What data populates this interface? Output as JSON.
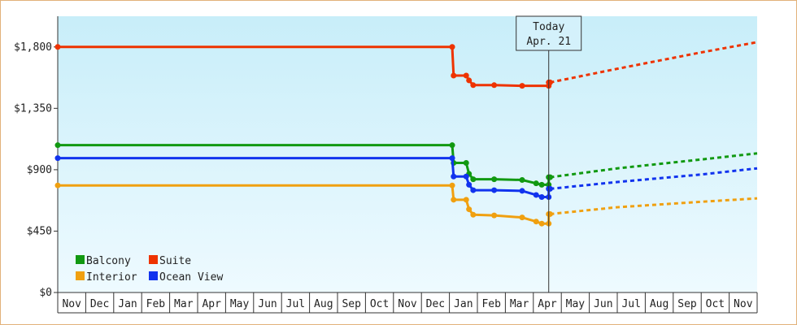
{
  "chart_data": {
    "type": "line",
    "ylim": [
      0,
      2025
    ],
    "yticks": [
      {
        "value": 0,
        "label": "$0"
      },
      {
        "value": 450,
        "label": "$450"
      },
      {
        "value": 900,
        "label": "$900"
      },
      {
        "value": 1350,
        "label": "$1,350"
      },
      {
        "value": 1800,
        "label": "$1,800"
      }
    ],
    "months": [
      "Nov",
      "Dec",
      "Jan",
      "Feb",
      "Mar",
      "Apr",
      "May",
      "Jun",
      "Jul",
      "Aug",
      "Sep",
      "Oct",
      "Nov",
      "Dec",
      "Jan",
      "Feb",
      "Mar",
      "Apr",
      "May",
      "Jun",
      "Jul",
      "Aug",
      "Sep",
      "Oct",
      "Nov"
    ],
    "today": {
      "label_line1": "Today",
      "label_line2": "Apr. 21",
      "x": 17.55
    },
    "legend": [
      "Balcony",
      "Suite",
      "Interior",
      "Ocean View"
    ],
    "colors": {
      "Balcony": "#119911",
      "Suite": "#ee3300",
      "Interior": "#f0a010",
      "Ocean View": "#1133ee",
      "background_top": "#c8eef9",
      "background_bottom": "#eefaff"
    },
    "series": [
      {
        "name": "Suite",
        "points": [
          [
            0,
            1800
          ],
          [
            14.1,
            1800
          ],
          [
            14.15,
            1590
          ],
          [
            14.6,
            1590
          ],
          [
            14.7,
            1555
          ],
          [
            14.85,
            1520
          ],
          [
            15.6,
            1520
          ],
          [
            16.6,
            1515
          ],
          [
            17.55,
            1515
          ],
          [
            17.55,
            1540
          ],
          [
            17.6,
            1540
          ]
        ],
        "forecast": [
          [
            17.6,
            1540
          ],
          [
            20,
            1640
          ],
          [
            23,
            1760
          ],
          [
            25,
            1835
          ]
        ]
      },
      {
        "name": "Balcony",
        "points": [
          [
            0,
            1080
          ],
          [
            14.1,
            1080
          ],
          [
            14.15,
            950
          ],
          [
            14.6,
            950
          ],
          [
            14.7,
            870
          ],
          [
            14.85,
            830
          ],
          [
            15.6,
            830
          ],
          [
            16.6,
            825
          ],
          [
            17.1,
            800
          ],
          [
            17.3,
            790
          ],
          [
            17.55,
            790
          ],
          [
            17.55,
            845
          ],
          [
            17.6,
            845
          ]
        ],
        "forecast": [
          [
            17.6,
            845
          ],
          [
            20,
            910
          ],
          [
            23,
            975
          ],
          [
            25,
            1020
          ]
        ]
      },
      {
        "name": "Ocean View",
        "points": [
          [
            0,
            985
          ],
          [
            14.1,
            985
          ],
          [
            14.15,
            850
          ],
          [
            14.6,
            850
          ],
          [
            14.7,
            790
          ],
          [
            14.85,
            750
          ],
          [
            15.6,
            750
          ],
          [
            16.6,
            745
          ],
          [
            17.1,
            715
          ],
          [
            17.3,
            700
          ],
          [
            17.55,
            700
          ],
          [
            17.55,
            760
          ],
          [
            17.6,
            760
          ]
        ],
        "forecast": [
          [
            17.6,
            760
          ],
          [
            20,
            810
          ],
          [
            23,
            865
          ],
          [
            25,
            910
          ]
        ]
      },
      {
        "name": "Interior",
        "points": [
          [
            0,
            785
          ],
          [
            14.1,
            785
          ],
          [
            14.15,
            680
          ],
          [
            14.6,
            680
          ],
          [
            14.7,
            610
          ],
          [
            14.85,
            570
          ],
          [
            15.6,
            565
          ],
          [
            16.6,
            550
          ],
          [
            17.1,
            520
          ],
          [
            17.3,
            505
          ],
          [
            17.55,
            505
          ],
          [
            17.55,
            575
          ],
          [
            17.6,
            575
          ]
        ],
        "forecast": [
          [
            17.6,
            575
          ],
          [
            20,
            625
          ],
          [
            23,
            665
          ],
          [
            25,
            690
          ]
        ]
      }
    ]
  }
}
